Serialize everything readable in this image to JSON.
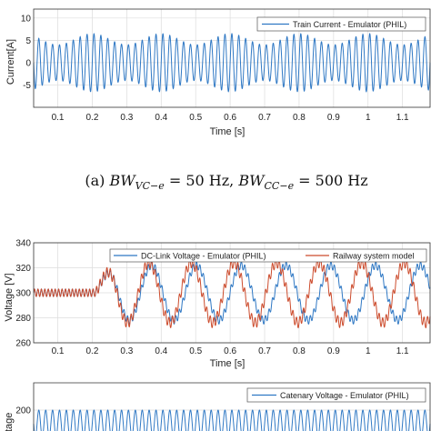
{
  "caption": "(a) BW_{VC−e} = 50 Hz, BW_{CC−e} = 500 Hz",
  "colors": {
    "blue": "#2f78c4",
    "red": "#cc4b2c",
    "grid": "#dcdcdc",
    "axis": "#333333"
  },
  "chart_data": [
    {
      "type": "line",
      "xlabel": "Time [s]",
      "ylabel": "Current[A]",
      "xlim": [
        0.03,
        1.18
      ],
      "ylim": [
        -10,
        12
      ],
      "xticks": [
        0.1,
        0.2,
        0.3,
        0.4,
        0.5,
        0.6,
        0.7,
        0.8,
        0.9,
        1,
        1.1
      ],
      "xtick_labels": [
        "0.1",
        "0.2",
        "0.3",
        "0.4",
        "0.5",
        "0.6",
        "0.7",
        "0.8",
        "0.9",
        "1",
        "1.1"
      ],
      "yticks": [
        -5,
        0,
        5,
        10
      ],
      "ytick_labels": [
        "-5",
        "0",
        "5",
        "10"
      ],
      "grid": true,
      "legend_position": "top-right",
      "series": [
        {
          "name": "Train Current - Emulator (PHIL)",
          "color": "#2f78c4",
          "signal": {
            "offset": 0,
            "frequency_hz": 50,
            "amplitude_min": 4,
            "amplitude_max": 6.5,
            "envelope_period_s": 0.2
          }
        }
      ]
    },
    {
      "type": "line",
      "xlabel": "Time [s]",
      "ylabel": "Voltage [V]",
      "xlim": [
        0.03,
        1.18
      ],
      "ylim": [
        260,
        340
      ],
      "xticks": [
        0.1,
        0.2,
        0.3,
        0.4,
        0.5,
        0.6,
        0.7,
        0.8,
        0.9,
        1,
        1.1
      ],
      "xtick_labels": [
        "0.1",
        "0.2",
        "0.3",
        "0.4",
        "0.5",
        "0.6",
        "0.7",
        "0.8",
        "0.9",
        "1",
        "1.1"
      ],
      "yticks": [
        260,
        280,
        300,
        320,
        340
      ],
      "ytick_labels": [
        "260",
        "280",
        "300",
        "320",
        "340"
      ],
      "grid": true,
      "legend_position": "top",
      "series": [
        {
          "name": "DC-Link Voltage - Emulator (PHIL)",
          "color": "#2f78c4",
          "signal": {
            "offset": 300,
            "step_time_s": 0.21,
            "pre_ripple_amplitude": 3,
            "ripple_frequency_hz": 100,
            "oscillation_amplitude": 22,
            "oscillation_frequency_hz": 7.7,
            "ripple_amplitude": 3
          }
        },
        {
          "name": "Railway system model",
          "color": "#cc4b2c",
          "signal": {
            "offset": 300,
            "step_time_s": 0.21,
            "pre_ripple_amplitude": 3,
            "ripple_frequency_hz": 100,
            "oscillation_amplitude": 24,
            "oscillation_frequency_hz": 8.1,
            "ripple_amplitude": 4
          }
        }
      ]
    },
    {
      "type": "line",
      "xlabel": "",
      "ylabel": "Voltage",
      "xlim": [
        0.03,
        1.18
      ],
      "ylim": [
        180,
        220
      ],
      "yticks": [
        200
      ],
      "ytick_labels": [
        "200"
      ],
      "grid": true,
      "legend_position": "top-right",
      "series": [
        {
          "name": "Catenary Voltage - Emulator (PHIL)",
          "color": "#2f78c4",
          "signal": {
            "offset": 190,
            "frequency_hz": 50,
            "amplitude": 10
          }
        }
      ]
    }
  ]
}
